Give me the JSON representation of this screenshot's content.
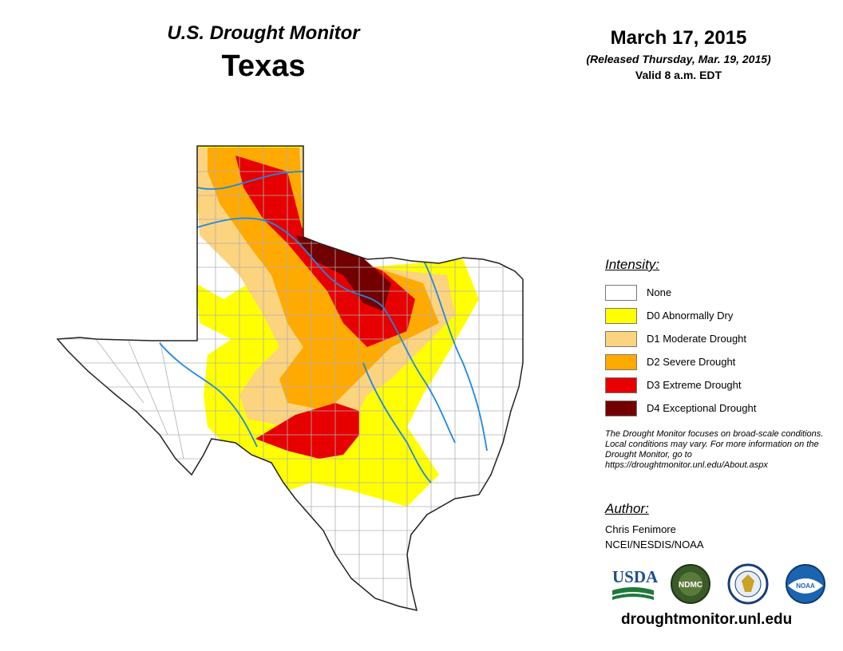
{
  "header": {
    "monitor_title": "U.S. Drought Monitor",
    "state_name": "Texas",
    "map_date": "March 17, 2015",
    "release_note": "(Released Thursday, Mar. 19, 2015)",
    "valid_time": "Valid 8 a.m. EDT"
  },
  "legend": {
    "heading": "Intensity:",
    "items": [
      {
        "label": "None",
        "color": "#ffffff"
      },
      {
        "label": "D0 Abnormally Dry",
        "color": "#ffff00"
      },
      {
        "label": "D1 Moderate Drought",
        "color": "#fcd37f"
      },
      {
        "label": "D2 Severe Drought",
        "color": "#ffaa00"
      },
      {
        "label": "D3 Extreme Drought",
        "color": "#e60000"
      },
      {
        "label": "D4 Exceptional Drought",
        "color": "#730000"
      }
    ]
  },
  "disclaimer": "The Drought Monitor focuses on broad-scale conditions. Local conditions may vary. For more information on the Drought Monitor, go to https://droughtmonitor.unl.edu/About.aspx",
  "author": {
    "heading": "Author:",
    "name": "Chris Fenimore",
    "org": "NCEI/NESDIS/NOAA"
  },
  "logos": [
    {
      "name": "usda-logo",
      "text": "USDA"
    },
    {
      "name": "ndmc-logo",
      "text": "NDMC"
    },
    {
      "name": "doc-logo",
      "text": ""
    },
    {
      "name": "noaa-logo",
      "text": "NOAA"
    }
  ],
  "site_url": "droughtmonitor.unl.edu"
}
